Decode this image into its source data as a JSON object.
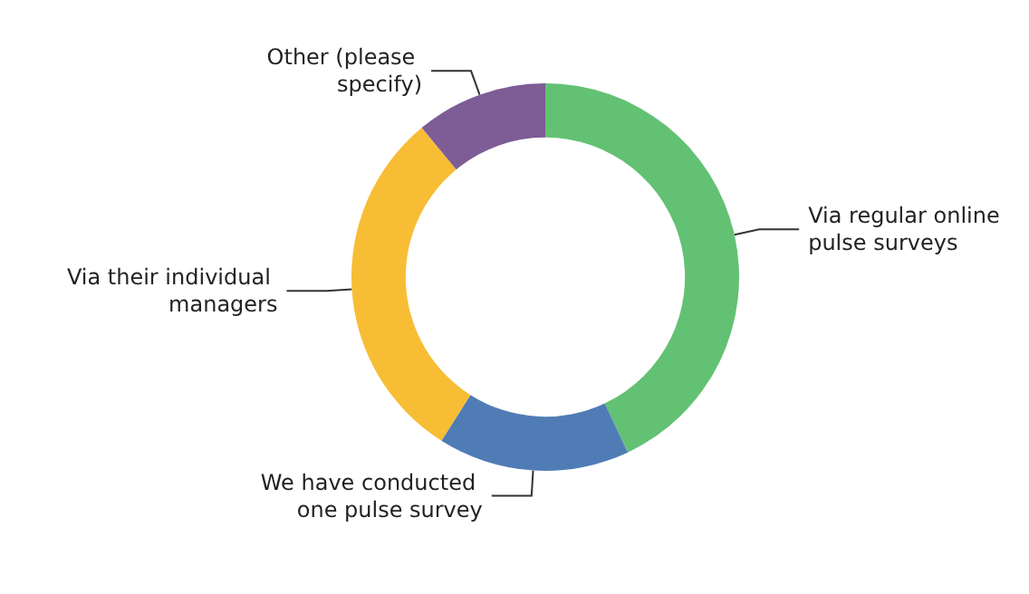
{
  "chart_data": {
    "type": "donut",
    "categories": [
      "Via regular online pulse surveys",
      "We have conducted one pulse survey",
      "Via their individual managers",
      "Other (please specify)"
    ],
    "values": [
      43,
      16,
      30,
      11
    ],
    "colors": [
      "#63c174",
      "#507cb6",
      "#f7bd35",
      "#7e5c96"
    ],
    "legend": false
  }
}
